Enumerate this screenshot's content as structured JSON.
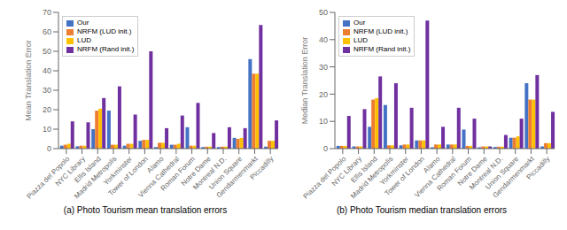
{
  "chart_data": [
    {
      "type": "bar",
      "title": "(a) Photo Tourism mean translation errors",
      "ylabel": "Mean Translation Error",
      "categories": [
        "Piazza del Popolo",
        "NYC Library",
        "Ellis Island",
        "Madrid Metropolis",
        "Yorkminster",
        "Tower of London",
        "Alamo",
        "Vienna Cathedral",
        "Roman Forum",
        "Notre Dame",
        "Montreal N.D.",
        "Union Square",
        "Gendarmenmarkt",
        "Piccadilly"
      ],
      "series": [
        {
          "name": "Our",
          "color": "#4472C4",
          "values": [
            1.5,
            1.2,
            10.0,
            19.5,
            1.5,
            4.0,
            0.8,
            2.0,
            11.0,
            0.8,
            0.8,
            5.5,
            46.0,
            1.0
          ]
        },
        {
          "name": "NRFM (LUD init.)",
          "color": "#ED7D31",
          "values": [
            2.0,
            1.5,
            19.5,
            2.0,
            2.5,
            4.5,
            3.0,
            2.0,
            1.5,
            1.0,
            1.0,
            5.0,
            38.5,
            4.0
          ]
        },
        {
          "name": "LUD",
          "color": "#FFC000",
          "values": [
            2.5,
            1.5,
            20.5,
            2.0,
            2.5,
            4.5,
            3.0,
            2.5,
            1.5,
            1.0,
            1.0,
            5.5,
            38.5,
            4.0
          ]
        },
        {
          "name": "NRFM (Rand init.)",
          "color": "#7030A0",
          "values": [
            14.0,
            13.5,
            26.0,
            32.0,
            17.5,
            50.0,
            10.5,
            17.0,
            23.5,
            8.0,
            11.0,
            10.5,
            63.5,
            14.5
          ]
        }
      ],
      "ylim": [
        0,
        70
      ],
      "yticks": [
        0,
        10,
        20,
        30,
        40,
        50,
        60,
        70
      ],
      "legend": "upper left",
      "grid": false
    },
    {
      "type": "bar",
      "title": "(b) Photo Tourism median translation errors",
      "ylabel": "Median Translation Error",
      "categories": [
        "Piazza del Popolo",
        "NYC Library",
        "Ellis Island",
        "Madrid Metropolis",
        "Yorkminster",
        "Tower of London",
        "Alamo",
        "Vienna Cathedral",
        "Roman Forum",
        "Notre Dame",
        "Montreal N.D.",
        "Union Square",
        "Gendarmenmarkt",
        "Piccadilly"
      ],
      "series": [
        {
          "name": "Our",
          "color": "#4472C4",
          "values": [
            1.0,
            0.8,
            8.0,
            16.0,
            1.2,
            3.0,
            0.5,
            1.5,
            7.0,
            0.5,
            0.6,
            4.0,
            24.0,
            0.8
          ]
        },
        {
          "name": "NRFM (LUD init.)",
          "color": "#ED7D31",
          "values": [
            1.0,
            0.8,
            18.0,
            1.2,
            1.5,
            3.0,
            1.5,
            1.5,
            1.0,
            0.8,
            0.7,
            4.0,
            18.0,
            2.0
          ]
        },
        {
          "name": "LUD",
          "color": "#FFC000",
          "values": [
            1.0,
            0.8,
            18.5,
            1.2,
            1.5,
            3.0,
            1.5,
            1.5,
            1.0,
            0.8,
            0.7,
            4.5,
            18.0,
            2.0
          ]
        },
        {
          "name": "NRFM (Rand init.)",
          "color": "#7030A0",
          "values": [
            12.0,
            14.5,
            26.5,
            24.0,
            15.0,
            47.0,
            8.0,
            15.0,
            11.0,
            0.8,
            5.0,
            11.0,
            27.0,
            13.5
          ]
        }
      ],
      "ylim": [
        0,
        50
      ],
      "yticks": [
        0,
        10,
        20,
        30,
        40,
        50
      ],
      "legend": "upper left",
      "grid": false
    }
  ]
}
